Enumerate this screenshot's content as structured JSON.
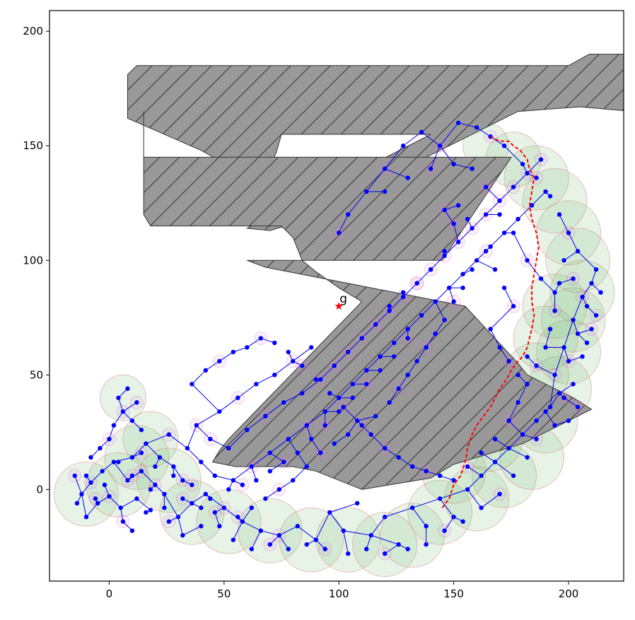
{
  "chart_data": {
    "type": "scatter",
    "title": "",
    "xlabel": "",
    "ylabel": "",
    "xlim": [
      -26,
      224
    ],
    "ylim": [
      -40,
      209
    ],
    "xticks": [
      0,
      50,
      100,
      150,
      200
    ],
    "yticks": [
      0,
      50,
      100,
      150,
      200
    ],
    "xtick_labels": [
      "0",
      "50",
      "100",
      "150",
      "200"
    ],
    "ytick_labels": [
      "0",
      "50",
      "100",
      "150",
      "200"
    ],
    "grid": false,
    "legend": "none",
    "obstacles": [
      [
        [
          8,
          181
        ],
        [
          12,
          185
        ],
        [
          200,
          185
        ],
        [
          209,
          190
        ],
        [
          230,
          190
        ],
        [
          236,
          180
        ],
        [
          236,
          170
        ],
        [
          228,
          165
        ],
        [
          205,
          167
        ],
        [
          178,
          165
        ],
        [
          80,
          116
        ],
        [
          70,
          113
        ],
        [
          60,
          114
        ],
        [
          140,
          155
        ],
        [
          75,
          155
        ],
        [
          73,
          148
        ],
        [
          70,
          140
        ],
        [
          58,
          138
        ],
        [
          40,
          148
        ],
        [
          8,
          162
        ],
        [
          8,
          181
        ]
      ],
      [
        [
          15,
          165
        ],
        [
          15,
          145
        ],
        [
          175,
          145
        ],
        [
          145,
          100
        ],
        [
          60,
          100
        ],
        [
          68,
          97
        ],
        [
          155,
          80
        ],
        [
          178,
          55
        ],
        [
          182,
          50
        ],
        [
          192,
          45
        ],
        [
          202,
          40
        ],
        [
          210,
          35
        ],
        [
          180,
          20
        ],
        [
          150,
          11
        ],
        [
          140,
          5
        ],
        [
          110,
          0
        ],
        [
          90,
          8
        ],
        [
          80,
          10
        ],
        [
          65,
          10
        ],
        [
          55,
          10
        ],
        [
          45,
          12
        ],
        [
          48,
          17
        ],
        [
          52,
          22
        ],
        [
          110,
          82
        ],
        [
          100,
          88
        ],
        [
          90,
          95
        ],
        [
          84,
          100
        ],
        [
          80,
          110
        ],
        [
          75,
          115
        ],
        [
          18,
          115
        ],
        [
          15,
          120
        ],
        [
          15,
          165
        ]
      ]
    ],
    "goal": {
      "x": 100,
      "y": 80,
      "label": "g"
    },
    "tree_nodes": [
      [
        -15,
        6
      ],
      [
        -12,
        -2
      ],
      [
        -10,
        -12
      ],
      [
        -8,
        3
      ],
      [
        -5,
        -6
      ],
      [
        -3,
        8
      ],
      [
        0,
        -3
      ],
      [
        2,
        12
      ],
      [
        5,
        -8
      ],
      [
        8,
        4
      ],
      [
        10,
        14
      ],
      [
        12,
        -4
      ],
      [
        14,
        8
      ],
      [
        16,
        20
      ],
      [
        18,
        -9
      ],
      [
        20,
        2
      ],
      [
        22,
        14
      ],
      [
        24,
        -2
      ],
      [
        26,
        24
      ],
      [
        28,
        10
      ],
      [
        30,
        -12
      ],
      [
        32,
        4
      ],
      [
        34,
        18
      ],
      [
        36,
        -6
      ],
      [
        38,
        28
      ],
      [
        40,
        12
      ],
      [
        42,
        -2
      ],
      [
        44,
        22
      ],
      [
        46,
        6
      ],
      [
        48,
        34
      ],
      [
        50,
        -8
      ],
      [
        52,
        18
      ],
      [
        54,
        4
      ],
      [
        56,
        40
      ],
      [
        58,
        -14
      ],
      [
        60,
        26
      ],
      [
        62,
        10
      ],
      [
        64,
        46
      ],
      [
        66,
        -18
      ],
      [
        68,
        32
      ],
      [
        70,
        16
      ],
      [
        72,
        50
      ],
      [
        74,
        -20
      ],
      [
        76,
        38
      ],
      [
        78,
        22
      ],
      [
        80,
        56
      ],
      [
        82,
        -16
      ],
      [
        84,
        42
      ],
      [
        86,
        28
      ],
      [
        88,
        62
      ],
      [
        90,
        -22
      ],
      [
        92,
        48
      ],
      [
        94,
        34
      ],
      [
        96,
        -10
      ],
      [
        98,
        54
      ],
      [
        100,
        40
      ],
      [
        102,
        -18
      ],
      [
        104,
        60
      ],
      [
        106,
        46
      ],
      [
        108,
        -6
      ],
      [
        110,
        66
      ],
      [
        112,
        52
      ],
      [
        114,
        -20
      ],
      [
        116,
        72
      ],
      [
        118,
        58
      ],
      [
        120,
        -12
      ],
      [
        122,
        78
      ],
      [
        124,
        64
      ],
      [
        126,
        -24
      ],
      [
        128,
        84
      ],
      [
        130,
        70
      ],
      [
        132,
        -8
      ],
      [
        134,
        90
      ],
      [
        136,
        76
      ],
      [
        138,
        -16
      ],
      [
        140,
        96
      ],
      [
        142,
        82
      ],
      [
        144,
        -4
      ],
      [
        146,
        102
      ],
      [
        148,
        88
      ],
      [
        150,
        -12
      ],
      [
        152,
        108
      ],
      [
        154,
        94
      ],
      [
        156,
        0
      ],
      [
        158,
        114
      ],
      [
        160,
        100
      ],
      [
        162,
        6
      ],
      [
        164,
        120
      ],
      [
        166,
        106
      ],
      [
        168,
        12
      ],
      [
        170,
        126
      ],
      [
        172,
        112
      ],
      [
        174,
        18
      ],
      [
        176,
        132
      ],
      [
        178,
        118
      ],
      [
        180,
        24
      ],
      [
        182,
        138
      ],
      [
        184,
        124
      ],
      [
        186,
        30
      ],
      [
        188,
        144
      ],
      [
        190,
        130
      ],
      [
        192,
        36
      ],
      [
        194,
        50
      ],
      [
        196,
        42
      ],
      [
        198,
        62
      ],
      [
        200,
        56
      ],
      [
        202,
        74
      ],
      [
        204,
        68
      ],
      [
        206,
        84
      ],
      [
        208,
        80
      ],
      [
        210,
        90
      ],
      [
        212,
        76
      ],
      [
        214,
        86
      ],
      [
        4,
        40
      ],
      [
        6,
        34
      ],
      [
        8,
        44
      ],
      [
        10,
        30
      ],
      [
        12,
        38
      ],
      [
        14,
        26
      ],
      [
        2,
        28
      ],
      [
        0,
        22
      ],
      [
        -4,
        18
      ],
      [
        -8,
        14
      ],
      [
        6,
        -14
      ],
      [
        10,
        -18
      ],
      [
        16,
        -10
      ],
      [
        26,
        -14
      ],
      [
        32,
        -20
      ],
      [
        40,
        -16
      ],
      [
        46,
        -10
      ],
      [
        54,
        -22
      ],
      [
        62,
        -26
      ],
      [
        70,
        -24
      ],
      [
        78,
        -26
      ],
      [
        86,
        -24
      ],
      [
        94,
        -26
      ],
      [
        104,
        -28
      ],
      [
        112,
        -26
      ],
      [
        120,
        -28
      ],
      [
        130,
        -26
      ],
      [
        138,
        -24
      ],
      [
        146,
        -18
      ],
      [
        154,
        -14
      ],
      [
        162,
        -8
      ],
      [
        170,
        -2
      ],
      [
        176,
        6
      ],
      [
        182,
        14
      ],
      [
        186,
        22
      ],
      [
        190,
        34
      ],
      [
        194,
        28
      ],
      [
        198,
        40
      ],
      [
        200,
        30
      ],
      [
        202,
        46
      ],
      [
        204,
        36
      ],
      [
        206,
        58
      ],
      [
        208,
        64
      ],
      [
        210,
        70
      ],
      [
        212,
        96
      ],
      [
        204,
        104
      ],
      [
        200,
        112
      ],
      [
        196,
        120
      ],
      [
        192,
        128
      ],
      [
        186,
        136
      ],
      [
        180,
        142
      ],
      [
        172,
        150
      ],
      [
        166,
        154
      ],
      [
        160,
        158
      ],
      [
        152,
        160
      ],
      [
        144,
        150
      ],
      [
        136,
        156
      ],
      [
        128,
        150
      ],
      [
        120,
        140
      ],
      [
        112,
        130
      ],
      [
        104,
        120
      ],
      [
        100,
        112
      ],
      [
        120,
        130
      ],
      [
        130,
        136
      ],
      [
        140,
        140
      ],
      [
        150,
        142
      ],
      [
        158,
        140
      ],
      [
        164,
        132
      ],
      [
        170,
        120
      ],
      [
        176,
        112
      ],
      [
        182,
        100
      ],
      [
        188,
        92
      ],
      [
        194,
        86
      ],
      [
        150,
        116
      ],
      [
        146,
        104
      ],
      [
        140,
        96
      ],
      [
        134,
        90
      ],
      [
        128,
        86
      ],
      [
        122,
        80
      ],
      [
        146,
        122
      ],
      [
        152,
        124
      ],
      [
        156,
        118
      ],
      [
        130,
        66
      ],
      [
        124,
        58
      ],
      [
        118,
        52
      ],
      [
        112,
        46
      ],
      [
        106,
        40
      ],
      [
        100,
        34
      ],
      [
        94,
        28
      ],
      [
        88,
        22
      ],
      [
        82,
        16
      ],
      [
        76,
        12
      ],
      [
        70,
        8
      ],
      [
        64,
        4
      ],
      [
        58,
        2
      ],
      [
        52,
        0
      ],
      [
        44,
        -4
      ],
      [
        36,
        2
      ],
      [
        28,
        6
      ],
      [
        20,
        10
      ],
      [
        14,
        16
      ],
      [
        36,
        46
      ],
      [
        42,
        52
      ],
      [
        48,
        56
      ],
      [
        54,
        60
      ],
      [
        60,
        62
      ],
      [
        66,
        66
      ],
      [
        72,
        64
      ],
      [
        78,
        60
      ],
      [
        84,
        54
      ],
      [
        90,
        48
      ],
      [
        96,
        42
      ],
      [
        102,
        36
      ],
      [
        108,
        30
      ],
      [
        114,
        24
      ],
      [
        120,
        18
      ],
      [
        126,
        14
      ],
      [
        132,
        10
      ],
      [
        138,
        8
      ],
      [
        144,
        6
      ],
      [
        150,
        4
      ],
      [
        156,
        10
      ],
      [
        162,
        16
      ],
      [
        168,
        22
      ],
      [
        174,
        30
      ],
      [
        178,
        38
      ],
      [
        182,
        46
      ],
      [
        186,
        54
      ],
      [
        190,
        62
      ],
      [
        192,
        70
      ],
      [
        194,
        78
      ],
      [
        196,
        90
      ],
      [
        198,
        100
      ],
      [
        202,
        92
      ],
      [
        166,
        70
      ],
      [
        170,
        62
      ],
      [
        174,
        56
      ],
      [
        178,
        50
      ],
      [
        182,
        58
      ],
      [
        176,
        80
      ],
      [
        172,
        88
      ],
      [
        168,
        96
      ],
      [
        164,
        104
      ],
      [
        158,
        96
      ],
      [
        154,
        88
      ],
      [
        150,
        82
      ],
      [
        146,
        74
      ],
      [
        142,
        68
      ],
      [
        138,
        62
      ],
      [
        134,
        56
      ],
      [
        130,
        50
      ],
      [
        126,
        44
      ],
      [
        122,
        38
      ],
      [
        116,
        32
      ],
      [
        110,
        28
      ],
      [
        104,
        24
      ],
      [
        98,
        20
      ],
      [
        92,
        16
      ],
      [
        86,
        10
      ],
      [
        80,
        4
      ],
      [
        74,
        0
      ],
      [
        68,
        -4
      ],
      [
        62,
        -8
      ],
      [
        56,
        -12
      ],
      [
        48,
        -16
      ],
      [
        40,
        -8
      ],
      [
        32,
        -4
      ],
      [
        24,
        -8
      ],
      [
        18,
        0
      ],
      [
        10,
        6
      ],
      [
        4,
        12
      ],
      [
        -2,
        2
      ],
      [
        -6,
        -4
      ],
      [
        -10,
        6
      ],
      [
        -14,
        -6
      ]
    ],
    "path": [
      [
        145,
        -8
      ],
      [
        148,
        -4
      ],
      [
        150,
        2
      ],
      [
        153,
        6
      ],
      [
        155,
        12
      ],
      [
        156,
        18
      ],
      [
        158,
        24
      ],
      [
        160,
        28
      ],
      [
        163,
        32
      ],
      [
        166,
        36
      ],
      [
        168,
        40
      ],
      [
        170,
        44
      ],
      [
        173,
        48
      ],
      [
        175,
        52
      ],
      [
        178,
        56
      ],
      [
        180,
        58
      ],
      [
        182,
        62
      ],
      [
        183,
        66
      ],
      [
        184,
        70
      ],
      [
        185,
        76
      ],
      [
        184,
        82
      ],
      [
        184,
        88
      ],
      [
        185,
        94
      ],
      [
        186,
        100
      ],
      [
        187,
        106
      ],
      [
        186,
        112
      ],
      [
        184,
        118
      ],
      [
        183,
        124
      ],
      [
        184,
        130
      ],
      [
        185,
        136
      ],
      [
        183,
        140
      ],
      [
        182,
        144
      ],
      [
        179,
        148
      ],
      [
        176,
        150
      ],
      [
        174,
        152
      ],
      [
        170,
        152
      ],
      [
        166,
        154
      ]
    ],
    "sample_circles": [
      [
        -10,
        -2,
        14
      ],
      [
        4,
        2,
        14
      ],
      [
        12,
        14,
        14
      ],
      [
        6,
        40,
        10
      ],
      [
        18,
        22,
        12
      ],
      [
        26,
        4,
        14
      ],
      [
        36,
        -10,
        14
      ],
      [
        52,
        -14,
        14
      ],
      [
        70,
        -18,
        14
      ],
      [
        88,
        -22,
        14
      ],
      [
        104,
        -22,
        14
      ],
      [
        120,
        -24,
        14
      ],
      [
        132,
        -20,
        14
      ],
      [
        144,
        -10,
        14
      ],
      [
        160,
        -4,
        14
      ],
      [
        172,
        6,
        14
      ],
      [
        184,
        14,
        14
      ],
      [
        190,
        30,
        14
      ],
      [
        196,
        44,
        14
      ],
      [
        200,
        60,
        14
      ],
      [
        202,
        74,
        14
      ],
      [
        206,
        86,
        14
      ],
      [
        204,
        100,
        14
      ],
      [
        200,
        112,
        14
      ],
      [
        194,
        126,
        14
      ],
      [
        186,
        136,
        14
      ],
      [
        176,
        144,
        12
      ],
      [
        164,
        150,
        10
      ],
      [
        150,
        8,
        14
      ],
      [
        166,
        22,
        14
      ],
      [
        178,
        36,
        14
      ],
      [
        186,
        50,
        14
      ],
      [
        190,
        66,
        14
      ],
      [
        194,
        80,
        14
      ]
    ]
  }
}
